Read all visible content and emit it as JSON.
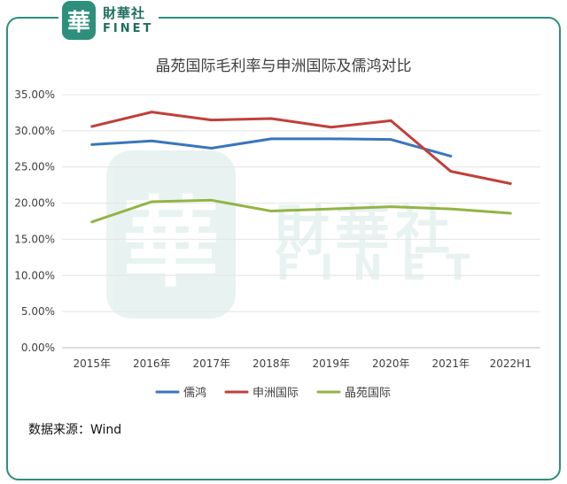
{
  "logo": {
    "seal_char": "華",
    "cn": "財華社",
    "en": "FINET"
  },
  "source": "数据来源：Wind",
  "chart_data": {
    "type": "line",
    "title": "晶苑国际毛利率与申洲国际及儒鸿对比",
    "categories": [
      "2015年",
      "2016年",
      "2017年",
      "2018年",
      "2019年",
      "2020年",
      "2021年",
      "2022H1"
    ],
    "ylim": [
      0,
      35
    ],
    "yticks": [
      0,
      5,
      10,
      15,
      20,
      25,
      30,
      35
    ],
    "ytick_labels": [
      "0.00%",
      "5.00%",
      "10.00%",
      "15.00%",
      "20.00%",
      "25.00%",
      "30.00%",
      "35.00%"
    ],
    "grid": true,
    "legend_position": "bottom",
    "series": [
      {
        "name": "儒鸿",
        "color": "#3a75bd",
        "values": [
          28.1,
          28.6,
          27.6,
          28.9,
          28.9,
          28.8,
          26.5,
          null
        ]
      },
      {
        "name": "申洲国际",
        "color": "#c0403a",
        "values": [
          30.6,
          32.6,
          31.5,
          31.7,
          30.5,
          31.4,
          24.4,
          22.7
        ]
      },
      {
        "name": "晶苑国际",
        "color": "#93b444",
        "values": [
          17.4,
          20.2,
          20.4,
          18.9,
          19.2,
          19.5,
          19.2,
          18.6
        ]
      }
    ]
  }
}
